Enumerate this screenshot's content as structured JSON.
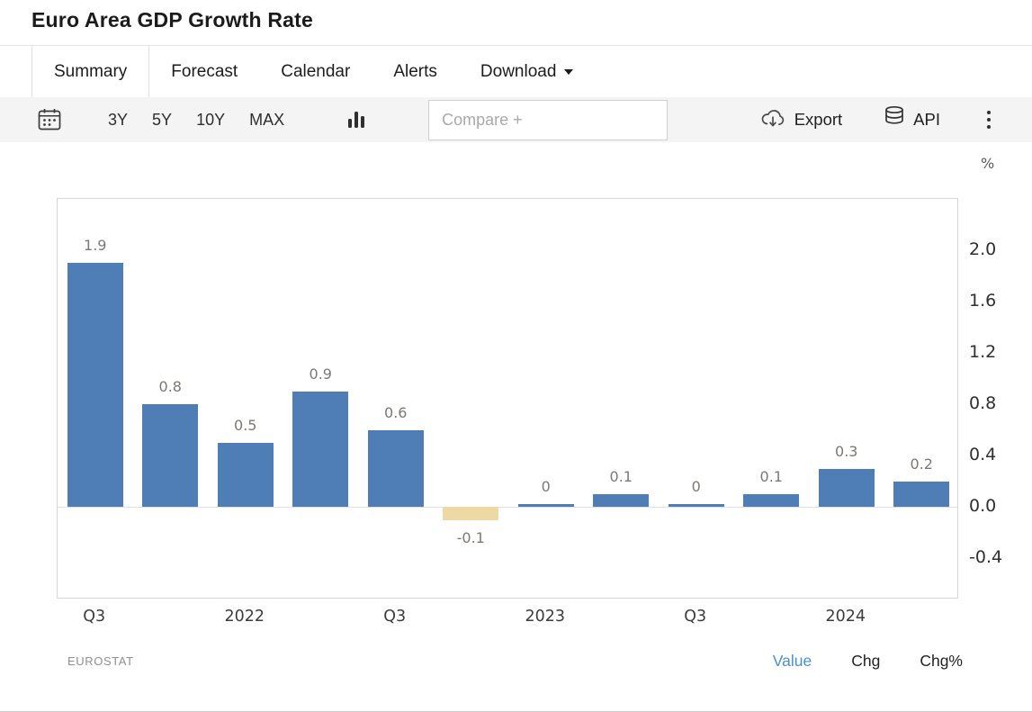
{
  "page": {
    "title": "Euro Area GDP Growth Rate"
  },
  "tabs": [
    {
      "label": "Summary",
      "active": true
    },
    {
      "label": "Forecast",
      "active": false
    },
    {
      "label": "Calendar",
      "active": false
    },
    {
      "label": "Alerts",
      "active": false
    },
    {
      "label": "Download",
      "active": false,
      "has_caret": true
    }
  ],
  "toolbar": {
    "ranges": [
      "3Y",
      "5Y",
      "10Y",
      "MAX"
    ],
    "compare_placeholder": "Compare +",
    "export_label": "Export",
    "api_label": "API",
    "icons": [
      "calendar-icon",
      "bar-chart-type-icon",
      "cloud-download-icon",
      "database-icon",
      "kebab-menu-icon"
    ]
  },
  "chart_data": {
    "type": "bar",
    "title": "Euro Area GDP Growth Rate",
    "unit_label": "%",
    "values": [
      1.9,
      0.8,
      0.5,
      0.9,
      0.6,
      -0.1,
      0,
      0.1,
      0,
      0.1,
      0.3,
      0.2
    ],
    "value_labels": [
      "1.9",
      "0.8",
      "0.5",
      "0.9",
      "0.6",
      "-0.1",
      "0",
      "0.1",
      "0",
      "0.1",
      "0.3",
      "0.2"
    ],
    "x_tick_labels": [
      {
        "index": 0,
        "label": "Q3"
      },
      {
        "index": 2,
        "label": "2022"
      },
      {
        "index": 4,
        "label": "Q3"
      },
      {
        "index": 6,
        "label": "2023"
      },
      {
        "index": 8,
        "label": "Q3"
      },
      {
        "index": 10,
        "label": "2024"
      }
    ],
    "y_ticks": [
      {
        "value": 2.0,
        "label": "2.0"
      },
      {
        "value": 1.6,
        "label": "1.6"
      },
      {
        "value": 1.2,
        "label": "1.2"
      },
      {
        "value": 0.8,
        "label": "0.8"
      },
      {
        "value": 0.4,
        "label": "0.4"
      },
      {
        "value": 0.0,
        "label": "0.0"
      },
      {
        "value": -0.4,
        "label": "-0.4"
      }
    ],
    "ylim": [
      -0.72,
      2.4
    ],
    "grid": false,
    "legend": "none",
    "highlight_index": 5,
    "colors": {
      "bar": "#4f7db5",
      "bar_highlight": "#eed9a5"
    }
  },
  "footer": {
    "source": "EUROSTAT",
    "active_color": "#4a90d2",
    "modes": [
      {
        "label": "Value",
        "active": true
      },
      {
        "label": "Chg",
        "active": false
      },
      {
        "label": "Chg%",
        "active": false
      }
    ]
  }
}
